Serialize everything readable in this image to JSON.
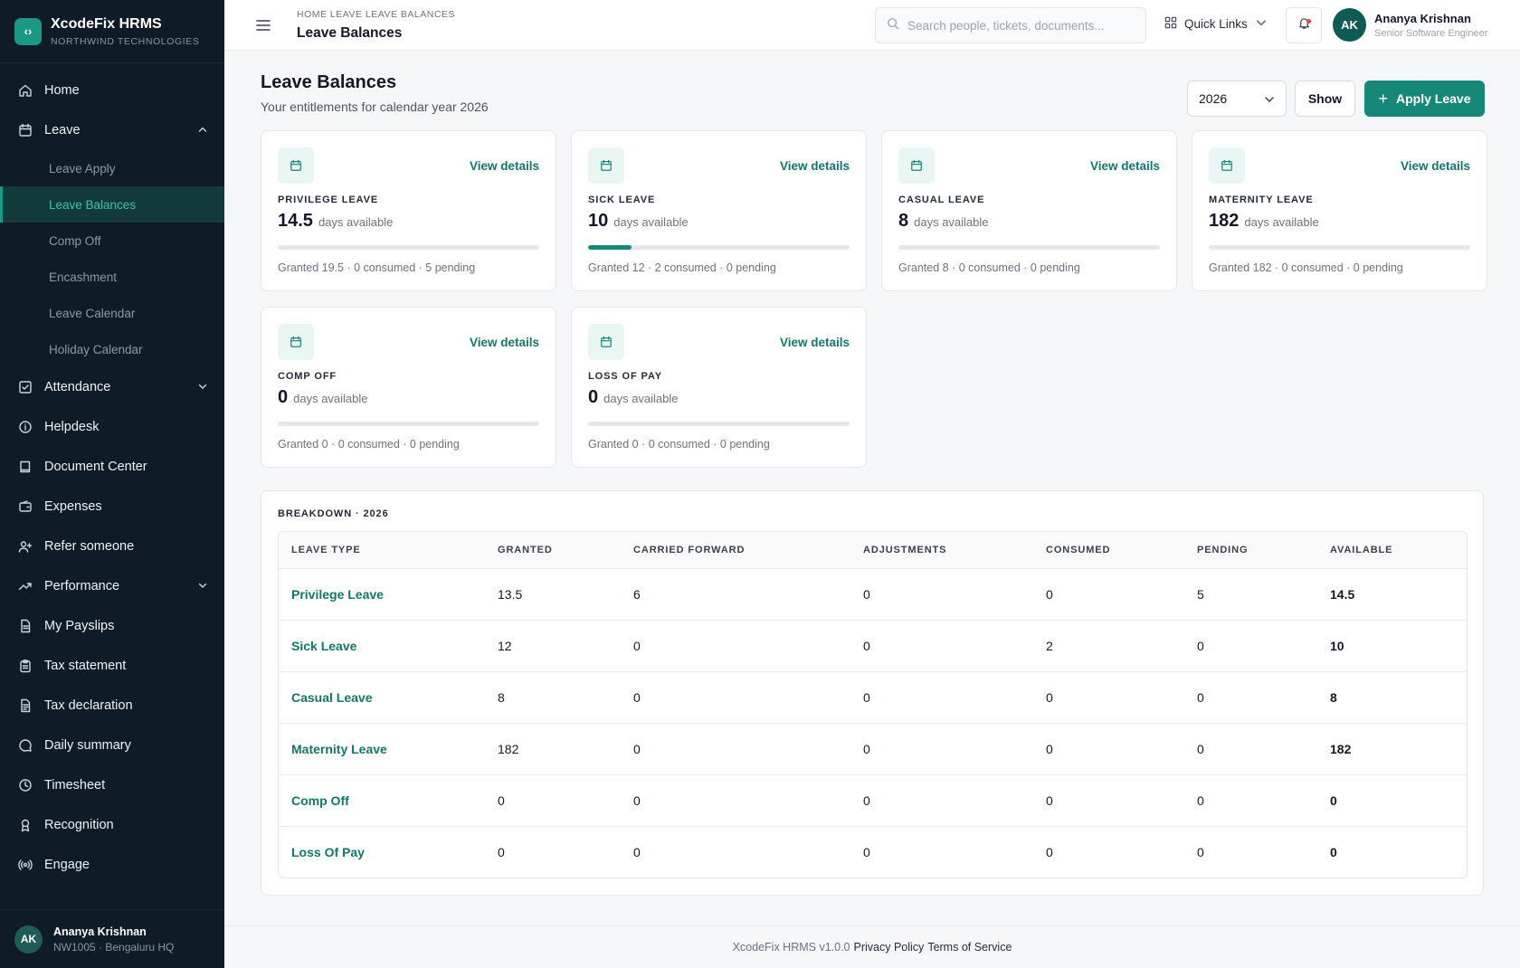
{
  "brand": {
    "name": "XcodeFix HRMS",
    "org": "NORTHWIND TECHNOLOGIES",
    "logo_glyph": "‹›"
  },
  "sidebar": {
    "items": [
      {
        "label": "Home",
        "icon": "home-icon"
      },
      {
        "label": "Leave",
        "icon": "calendar-icon",
        "expanded": true,
        "children": [
          "Leave Apply",
          "Leave Balances",
          "Comp Off",
          "Encashment",
          "Leave Calendar",
          "Holiday Calendar"
        ],
        "active_child": "Leave Balances"
      },
      {
        "label": "Attendance",
        "icon": "check-square-icon",
        "expanded": false
      },
      {
        "label": "Helpdesk",
        "icon": "info-icon"
      },
      {
        "label": "Document Center",
        "icon": "book-icon"
      },
      {
        "label": "Expenses",
        "icon": "wallet-icon"
      },
      {
        "label": "Refer someone",
        "icon": "user-plus-icon"
      },
      {
        "label": "Performance",
        "icon": "trending-up-icon",
        "expanded": false
      },
      {
        "label": "My Payslips",
        "icon": "file-icon"
      },
      {
        "label": "Tax statement",
        "icon": "clipboard-icon"
      },
      {
        "label": "Tax declaration",
        "icon": "file-text-icon"
      },
      {
        "label": "Daily summary",
        "icon": "message-circle-icon"
      },
      {
        "label": "Timesheet",
        "icon": "clock-icon"
      },
      {
        "label": "Recognition",
        "icon": "award-icon"
      },
      {
        "label": "Engage",
        "icon": "broadcast-icon"
      }
    ],
    "user": {
      "initials": "AK",
      "name": "Ananya Krishnan",
      "meta": "NW1005 · Bengaluru HQ"
    }
  },
  "header": {
    "breadcrumb": "HOME LEAVE LEAVE BALANCES",
    "title": "Leave Balances",
    "search_placeholder": "Search people, tickets, documents...",
    "quick_links": "Quick Links",
    "user": {
      "initials": "AK",
      "name": "Ananya Krishnan",
      "role": "Senior Software Engineer"
    }
  },
  "page": {
    "title": "Leave Balances",
    "subtitle": "Your entitlements for calendar year 2026",
    "year": "2026",
    "show_label": "Show",
    "apply_label": "Apply Leave"
  },
  "cards": [
    {
      "type": "PRIVILEGE LEAVE",
      "available": "14.5",
      "unit": "days available",
      "link": "View details",
      "meta": "Granted 19.5 · 0 consumed · 5 pending",
      "progress": 0
    },
    {
      "type": "SICK LEAVE",
      "available": "10",
      "unit": "days available",
      "link": "View details",
      "meta": "Granted 12 · 2 consumed · 0 pending",
      "progress": 0.1667
    },
    {
      "type": "CASUAL LEAVE",
      "available": "8",
      "unit": "days available",
      "link": "View details",
      "meta": "Granted 8 · 0 consumed · 0 pending",
      "progress": 0
    },
    {
      "type": "MATERNITY LEAVE",
      "available": "182",
      "unit": "days available",
      "link": "View details",
      "meta": "Granted 182 · 0 consumed · 0 pending",
      "progress": 0
    },
    {
      "type": "COMP OFF",
      "available": "0",
      "unit": "days available",
      "link": "View details",
      "meta": "Granted 0 · 0 consumed · 0 pending",
      "progress": 0
    },
    {
      "type": "LOSS OF PAY",
      "available": "0",
      "unit": "days available",
      "link": "View details",
      "meta": "Granted 0 · 0 consumed · 0 pending",
      "progress": 0
    }
  ],
  "breakdown": {
    "title": "BREAKDOWN · 2026",
    "columns": [
      "LEAVE TYPE",
      "GRANTED",
      "CARRIED FORWARD",
      "ADJUSTMENTS",
      "CONSUMED",
      "PENDING",
      "AVAILABLE"
    ],
    "rows": [
      [
        "Privilege Leave",
        "13.5",
        "6",
        "0",
        "0",
        "5",
        "14.5"
      ],
      [
        "Sick Leave",
        "12",
        "0",
        "0",
        "2",
        "0",
        "10"
      ],
      [
        "Casual Leave",
        "8",
        "0",
        "0",
        "0",
        "0",
        "8"
      ],
      [
        "Maternity Leave",
        "182",
        "0",
        "0",
        "0",
        "0",
        "182"
      ],
      [
        "Comp Off",
        "0",
        "0",
        "0",
        "0",
        "0",
        "0"
      ],
      [
        "Loss Of Pay",
        "0",
        "0",
        "0",
        "0",
        "0",
        "0"
      ]
    ]
  },
  "footer": {
    "version": "XcodeFix HRMS v1.0.0",
    "privacy": "Privacy Policy",
    "terms": "Terms of Service"
  },
  "colors": {
    "accent": "#15887a",
    "sidebar_bg": "#0f1b26",
    "active_bg": "#133a3a",
    "active_text": "#39c2ad"
  }
}
